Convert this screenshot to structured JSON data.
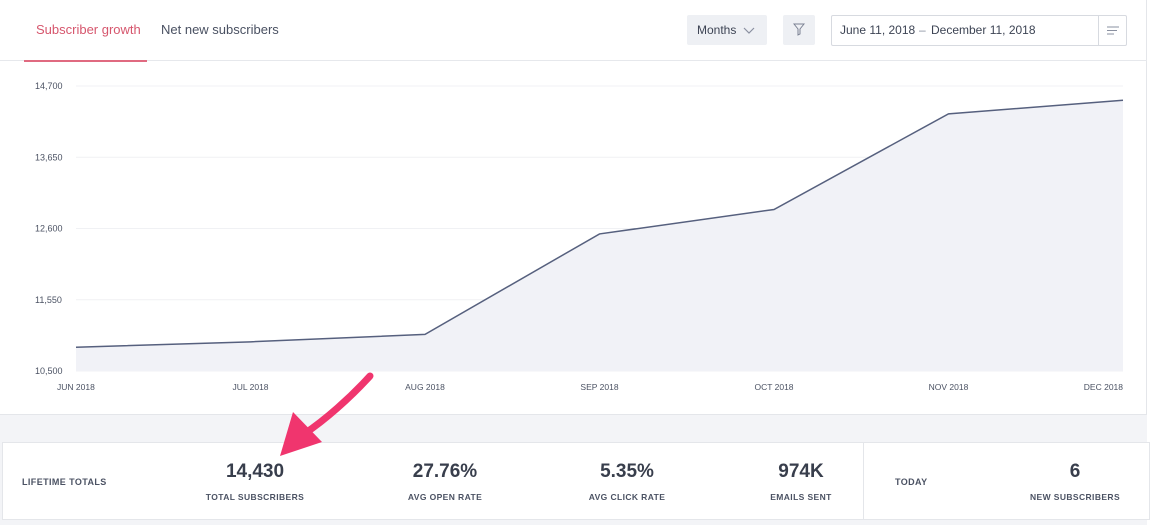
{
  "tabs": [
    {
      "label": "Subscriber growth",
      "active": true
    },
    {
      "label": "Net new subscribers",
      "active": false
    }
  ],
  "controls": {
    "period": "Months",
    "period_icon": "chevron-down-icon",
    "filter_icon": "funnel-icon",
    "date_start": "June 11, 2018",
    "date_separator": "–",
    "date_end": "December 11, 2018",
    "menu_icon": "lines-icon"
  },
  "colors": {
    "accent": "#d6566d",
    "line": "#56607e",
    "area": "#f1f2f7",
    "annotation_arrow": "#f0356e"
  },
  "chart_data": {
    "type": "area",
    "x": [
      "JUN 2018",
      "JUL 2018",
      "AUG 2018",
      "SEP 2018",
      "OCT 2018",
      "NOV 2018",
      "DEC 2018"
    ],
    "values": [
      10850,
      10930,
      11040,
      12520,
      12880,
      14290,
      14490
    ],
    "yticks": [
      "14,700",
      "13,650",
      "12,600",
      "11,550",
      "10,500"
    ],
    "ylim": [
      10500,
      14700
    ],
    "grid": true
  },
  "stats": {
    "lifetime_label": "LIFETIME TOTALS",
    "items": [
      {
        "value": "14,430",
        "label": "TOTAL SUBSCRIBERS"
      },
      {
        "value": "27.76%",
        "label": "AVG OPEN RATE"
      },
      {
        "value": "5.35%",
        "label": "AVG CLICK RATE"
      },
      {
        "value": "974K",
        "label": "EMAILS SENT"
      }
    ],
    "today_label": "TODAY",
    "today": {
      "value": "6",
      "label": "NEW SUBSCRIBERS"
    }
  }
}
